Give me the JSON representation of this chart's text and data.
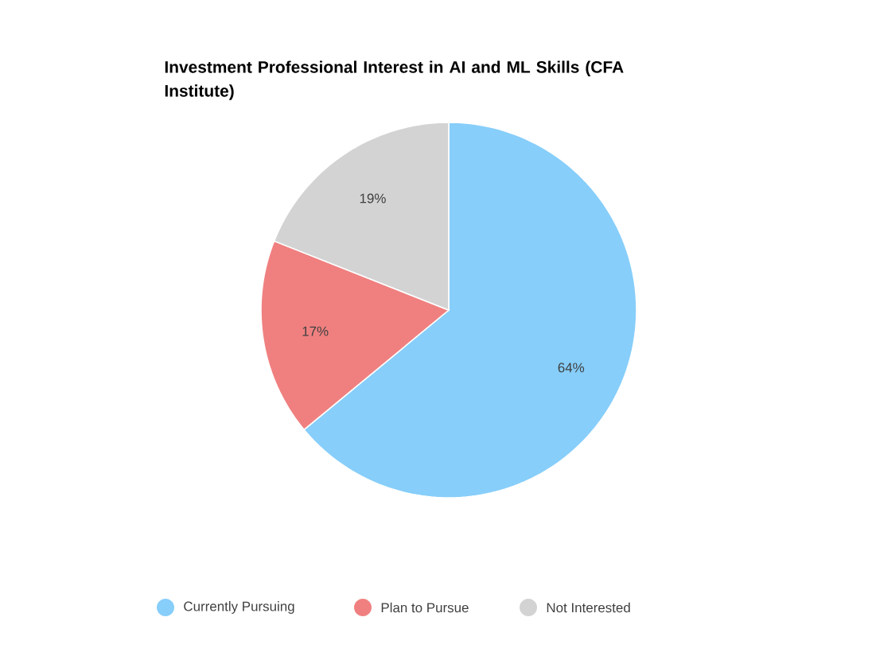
{
  "chart_data": {
    "type": "pie",
    "title": "Investment Professional Interest in AI and ML Skills (CFA Institute)",
    "categories": [
      "Currently Pursuing",
      "Plan to Pursue",
      "Not Interested"
    ],
    "values": [
      64,
      17,
      19
    ],
    "colors": [
      "#87cefa",
      "#f08080",
      "#d3d3d3"
    ],
    "value_labels": [
      "64%",
      "17%",
      "19%"
    ],
    "legend": "bottom"
  }
}
